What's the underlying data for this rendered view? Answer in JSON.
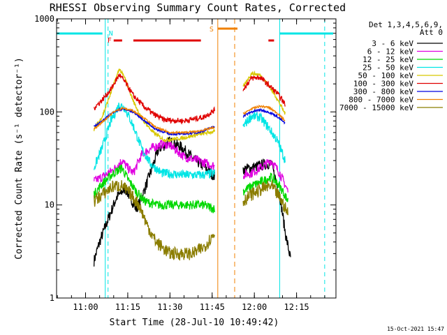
{
  "chart_data": {
    "type": "line",
    "title": "RHESSI Observing Summary Count Rates, Corrected",
    "xlabel": "Start Time (28-Jul-10 10:49:42)",
    "ylabel": "Corrected Count Rate (s⁻¹ detector⁻¹)",
    "yscale": "log",
    "ylim": [
      1,
      1000
    ],
    "xlim": [
      "10:49:42",
      "12:29:00"
    ],
    "x_ticks": [
      "11:00",
      "11:15",
      "11:30",
      "11:45",
      "12:00",
      "12:15"
    ],
    "y_ticks": [
      "1",
      "10",
      "100",
      "1000"
    ],
    "legend_header": [
      "Det 1,3,4,5,6,9,",
      "Att 0"
    ],
    "legend_position": "right",
    "timestamp": "15-Oct-2021 15:47",
    "annotations": {
      "night_label": "N",
      "flare_label": "F",
      "saa_label": "S",
      "night_lines": [
        "11:07",
        "12:09"
      ],
      "night_dashed": [
        "11:07",
        "12:24"
      ],
      "night_bar_segments": [
        [
          "10:49",
          "11:06"
        ],
        [
          "12:09",
          "12:28"
        ]
      ],
      "saa_solid": "11:47",
      "saa_dashed": "11:53",
      "saa_bar": [
        "11:47",
        "11:54"
      ],
      "flare_bars": [
        [
          "11:10",
          "11:13"
        ],
        [
          "11:17",
          "11:41"
        ],
        [
          "12:05",
          "12:07"
        ]
      ],
      "colors": {
        "night": "#00e5e5",
        "flare": "#e00000",
        "saa": "#f08000"
      }
    },
    "series": [
      {
        "name": "3 - 6 keV",
        "color": "#000000",
        "noise": 0.06,
        "points": [
          [
            "10:49:42",
            null
          ],
          [
            "11:03:00",
            2.5
          ],
          [
            "11:05:00",
            4
          ],
          [
            "11:08:00",
            7
          ],
          [
            "11:11:00",
            12
          ],
          [
            "11:14:00",
            15
          ],
          [
            "11:16:00",
            12
          ],
          [
            "11:18:00",
            9
          ],
          [
            "11:20:00",
            12
          ],
          [
            "11:23:00",
            22
          ],
          [
            "11:26:00",
            40
          ],
          [
            "11:30:00",
            48
          ],
          [
            "11:34:00",
            42
          ],
          [
            "11:38:00",
            32
          ],
          [
            "11:42:00",
            26
          ],
          [
            "11:46:00",
            20
          ],
          [
            "11:50:00",
            null
          ],
          [
            "11:56:00",
            24
          ],
          [
            "11:59:00",
            25
          ],
          [
            "12:03:00",
            27
          ],
          [
            "12:06:00",
            28
          ],
          [
            "12:09:00",
            13
          ],
          [
            "12:11:00",
            5
          ],
          [
            "12:13:00",
            2.5
          ]
        ]
      },
      {
        "name": "6 - 12 keV",
        "color": "#e000e0",
        "noise": 0.05,
        "points": [
          [
            "10:49:42",
            null
          ],
          [
            "11:03:00",
            18
          ],
          [
            "11:06:00",
            20
          ],
          [
            "11:10:00",
            24
          ],
          [
            "11:13:00",
            30
          ],
          [
            "11:15:00",
            25
          ],
          [
            "11:17:00",
            22
          ],
          [
            "11:20:00",
            35
          ],
          [
            "11:23:00",
            40
          ],
          [
            "11:27:00",
            45
          ],
          [
            "11:30:00",
            44
          ],
          [
            "11:35:00",
            33
          ],
          [
            "11:40:00",
            30
          ],
          [
            "11:46:00",
            26
          ],
          [
            "11:50:00",
            null
          ],
          [
            "11:56:00",
            21
          ],
          [
            "11:59:00",
            22
          ],
          [
            "12:03:00",
            26
          ],
          [
            "12:06:00",
            30
          ],
          [
            "12:09:00",
            22
          ],
          [
            "12:12:00",
            14
          ]
        ]
      },
      {
        "name": "12 - 25 keV",
        "color": "#00d800",
        "noise": 0.05,
        "points": [
          [
            "10:49:42",
            null
          ],
          [
            "11:03:00",
            13
          ],
          [
            "11:06:00",
            17
          ],
          [
            "11:10:00",
            22
          ],
          [
            "11:13:00",
            25
          ],
          [
            "11:15:00",
            19
          ],
          [
            "11:18:00",
            14
          ],
          [
            "11:21:00",
            11
          ],
          [
            "11:25:00",
            10
          ],
          [
            "11:35:00",
            10
          ],
          [
            "11:42:00",
            10
          ],
          [
            "11:46:00",
            9
          ],
          [
            "11:50:00",
            null
          ],
          [
            "11:56:00",
            14
          ],
          [
            "11:59:00",
            16
          ],
          [
            "12:03:00",
            18
          ],
          [
            "12:06:00",
            20
          ],
          [
            "12:09:00",
            16
          ],
          [
            "12:12:00",
            11
          ]
        ]
      },
      {
        "name": "25 - 50 keV",
        "color": "#00e5e5",
        "noise": 0.05,
        "points": [
          [
            "10:49:42",
            null
          ],
          [
            "11:03:00",
            25
          ],
          [
            "11:06:00",
            42
          ],
          [
            "11:09:00",
            80
          ],
          [
            "11:12:00",
            120
          ],
          [
            "11:14:00",
            110
          ],
          [
            "11:17:00",
            70
          ],
          [
            "11:20:00",
            40
          ],
          [
            "11:23:00",
            28
          ],
          [
            "11:27:00",
            22
          ],
          [
            "11:35:00",
            21
          ],
          [
            "11:42:00",
            21
          ],
          [
            "11:46:00",
            22
          ],
          [
            "11:50:00",
            null
          ],
          [
            "11:56:00",
            70
          ],
          [
            "11:59:00",
            90
          ],
          [
            "12:02:00",
            88
          ],
          [
            "12:05:00",
            68
          ],
          [
            "12:08:00",
            50
          ],
          [
            "12:11:00",
            30
          ]
        ]
      },
      {
        "name": "50 - 100 keV",
        "color": "#d8c800",
        "noise": 0.02,
        "points": [
          [
            "10:49:42",
            null
          ],
          [
            "11:03:00",
            65
          ],
          [
            "11:06:00",
            90
          ],
          [
            "11:09:00",
            160
          ],
          [
            "11:12:00",
            290
          ],
          [
            "11:14:00",
            230
          ],
          [
            "11:17:00",
            130
          ],
          [
            "11:20:00",
            85
          ],
          [
            "11:24:00",
            60
          ],
          [
            "11:28:00",
            50
          ],
          [
            "11:34:00",
            52
          ],
          [
            "11:40:00",
            57
          ],
          [
            "11:46:00",
            62
          ],
          [
            "11:50:00",
            null
          ],
          [
            "11:56:00",
            185
          ],
          [
            "11:59:00",
            260
          ],
          [
            "12:02:00",
            250
          ],
          [
            "12:05:00",
            195
          ],
          [
            "12:08:00",
            140
          ],
          [
            "12:11:00",
            95
          ]
        ]
      },
      {
        "name": "100 - 300 keV",
        "color": "#e00000",
        "noise": 0.03,
        "points": [
          [
            "10:49:42",
            null
          ],
          [
            "11:03:00",
            110
          ],
          [
            "11:06:00",
            135
          ],
          [
            "11:09:00",
            175
          ],
          [
            "11:12:00",
            250
          ],
          [
            "11:14:00",
            210
          ],
          [
            "11:17:00",
            150
          ],
          [
            "11:20:00",
            120
          ],
          [
            "11:24:00",
            95
          ],
          [
            "11:28:00",
            82
          ],
          [
            "11:35:00",
            80
          ],
          [
            "11:42:00",
            88
          ],
          [
            "11:46:00",
            105
          ],
          [
            "11:50:00",
            null
          ],
          [
            "11:56:00",
            175
          ],
          [
            "11:59:00",
            230
          ],
          [
            "12:02:00",
            235
          ],
          [
            "12:05:00",
            195
          ],
          [
            "12:08:00",
            160
          ],
          [
            "12:11:00",
            120
          ]
        ]
      },
      {
        "name": "300 - 800 keV",
        "color": "#0000e0",
        "noise": 0.012,
        "points": [
          [
            "10:49:42",
            null
          ],
          [
            "11:03:00",
            70
          ],
          [
            "11:06:00",
            80
          ],
          [
            "11:10:00",
            100
          ],
          [
            "11:13:00",
            108
          ],
          [
            "11:17:00",
            100
          ],
          [
            "11:21:00",
            80
          ],
          [
            "11:25:00",
            65
          ],
          [
            "11:30:00",
            58
          ],
          [
            "11:35:00",
            58
          ],
          [
            "11:40:00",
            60
          ],
          [
            "11:46:00",
            70
          ],
          [
            "11:50:00",
            null
          ],
          [
            "11:56:00",
            90
          ],
          [
            "11:59:00",
            100
          ],
          [
            "12:02:00",
            105
          ],
          [
            "12:05:00",
            100
          ],
          [
            "12:08:00",
            90
          ],
          [
            "12:11:00",
            75
          ]
        ]
      },
      {
        "name": "800 - 7000 keV",
        "color": "#f08000",
        "noise": 0.01,
        "points": [
          [
            "10:49:42",
            null
          ],
          [
            "11:03:00",
            65
          ],
          [
            "11:06:00",
            78
          ],
          [
            "11:10:00",
            100
          ],
          [
            "11:13:00",
            110
          ],
          [
            "11:17:00",
            103
          ],
          [
            "11:21:00",
            85
          ],
          [
            "11:25:00",
            68
          ],
          [
            "11:30:00",
            60
          ],
          [
            "11:35:00",
            60
          ],
          [
            "11:40:00",
            62
          ],
          [
            "11:46:00",
            68
          ],
          [
            "11:50:00",
            null
          ],
          [
            "11:56:00",
            95
          ],
          [
            "11:59:00",
            108
          ],
          [
            "12:02:00",
            115
          ],
          [
            "12:05:00",
            112
          ],
          [
            "12:08:00",
            98
          ],
          [
            "12:11:00",
            80
          ]
        ]
      },
      {
        "name": "7000 - 15000 keV",
        "color": "#8b7d00",
        "noise": 0.07,
        "points": [
          [
            "10:49:42",
            null
          ],
          [
            "11:03:00",
            11
          ],
          [
            "11:06:00",
            13
          ],
          [
            "11:10:00",
            16
          ],
          [
            "11:13:00",
            16
          ],
          [
            "11:16:00",
            13
          ],
          [
            "11:19:00",
            10
          ],
          [
            "11:22:00",
            6
          ],
          [
            "11:25:00",
            4
          ],
          [
            "11:30:00",
            3
          ],
          [
            "11:38:00",
            3
          ],
          [
            "11:42:00",
            3.5
          ],
          [
            "11:46:00",
            5
          ],
          [
            "11:50:00",
            null
          ],
          [
            "11:56:00",
            11
          ],
          [
            "11:59:00",
            13
          ],
          [
            "12:03:00",
            15
          ],
          [
            "12:06:00",
            16
          ],
          [
            "12:09:00",
            12
          ],
          [
            "12:12:00",
            8
          ]
        ]
      }
    ]
  }
}
